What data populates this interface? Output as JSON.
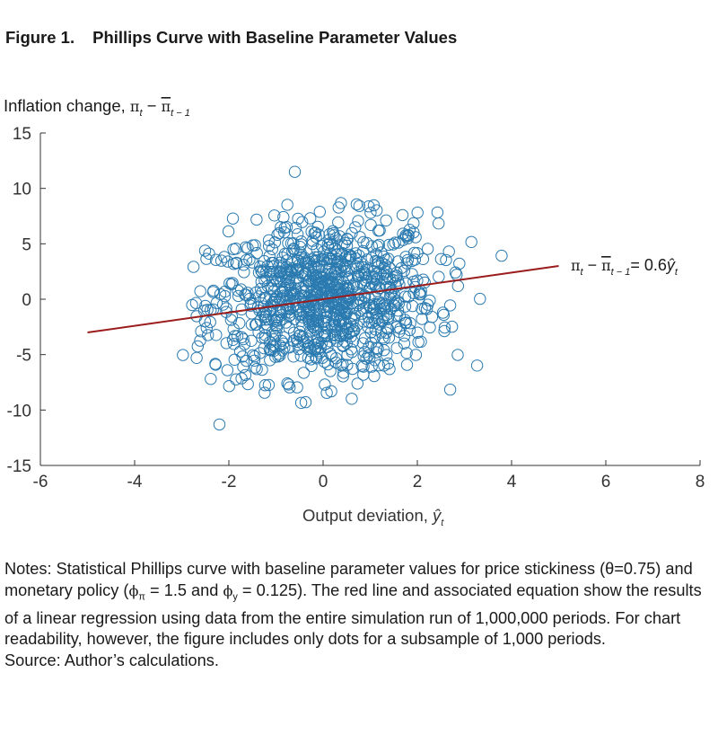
{
  "figure": {
    "label": "Figure 1.",
    "title": "Phillips Curve with Baseline Parameter Values"
  },
  "chart_data": {
    "type": "scatter",
    "ylabel": "Inflation change, πt − π̄t−1",
    "xlabel": "Output deviation, ŷt",
    "xlim": [
      -6,
      8
    ],
    "ylim": [
      -15,
      15
    ],
    "xticks": [
      "-6",
      "-4",
      "-2",
      "0",
      "2",
      "4",
      "6",
      "8"
    ],
    "yticks": [
      "15",
      "10",
      "5",
      "0",
      "-5",
      "-10",
      "-15"
    ],
    "point_count": 1000,
    "point_distribution": {
      "x_mean": 0,
      "x_sd": 1.2,
      "y_sd": 3.5,
      "x_range": [
        -3.1,
        3.9
      ],
      "y_range": [
        -9.5,
        9.8
      ]
    },
    "outliers": [
      [
        -0.6,
        11.5
      ],
      [
        -2.2,
        -11.3
      ]
    ],
    "regression_line": {
      "slope": 0.6,
      "intercept": 0,
      "x_range": [
        -5,
        5
      ]
    },
    "annotation": "πt − π̄t−1= 0.6ŷt",
    "colors": {
      "points": "#2a7ab0",
      "regression": "#9b1c1c",
      "axes": "#333333"
    }
  },
  "notes": {
    "text": "Notes: Statistical Phillips curve with baseline parameter values for price stickiness (θ=0.75) and monetary policy (ϕπ = 1.5 and ϕy = 0.125). The red line and associated equation show the results of a linear regression using data from the entire simulation run of 1,000,000 periods. For chart readability, however, the figure includes only dots for a subsample of 1,000 periods.",
    "source": "Source: Author’s calculations."
  }
}
